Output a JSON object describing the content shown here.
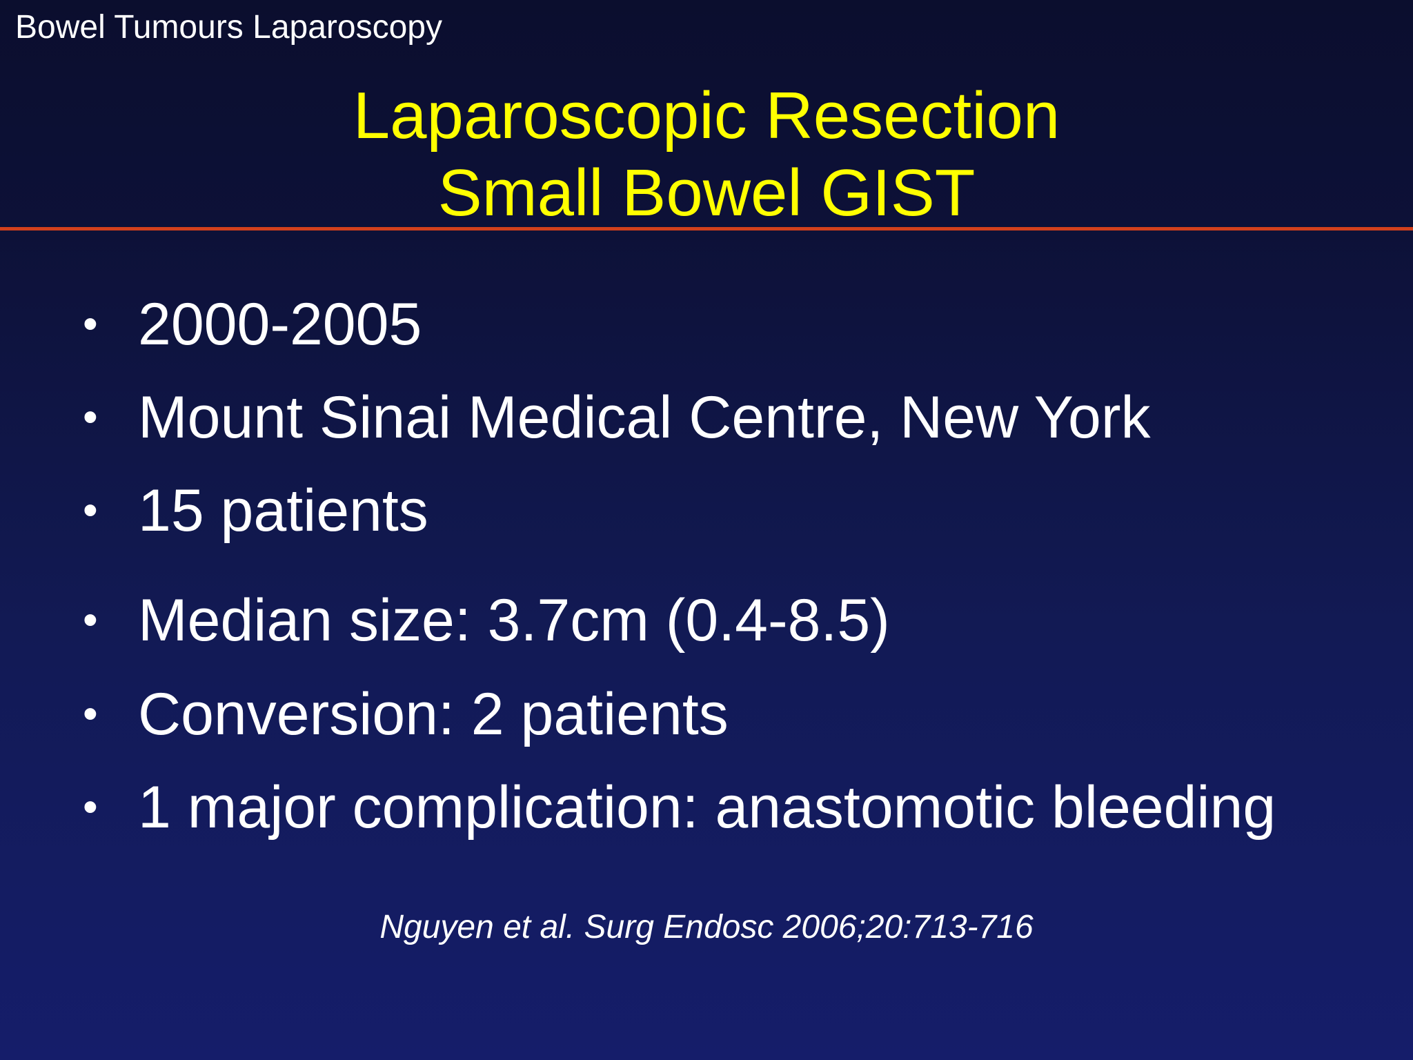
{
  "header": {
    "label": "Bowel Tumours Laparoscopy"
  },
  "title": {
    "line1": "Laparoscopic Resection",
    "line2": "Small Bowel GIST"
  },
  "colors": {
    "title": "#ffff00",
    "text": "#ffffff",
    "rule": "#d2401c",
    "background_top": "#0b0e2e",
    "background_bottom": "#151d6a"
  },
  "bullets": [
    {
      "text": "2000-2005"
    },
    {
      "text": "Mount Sinai Medical Centre, New York"
    },
    {
      "text": "15 patients"
    },
    {
      "text": "Median size: 3.7cm (0.4-8.5)"
    },
    {
      "text": "Conversion: 2 patients"
    },
    {
      "text": "1 major complication: anastomotic bleeding"
    }
  ],
  "citation": "Nguyen et al. Surg Endosc 2006;20:713-716"
}
